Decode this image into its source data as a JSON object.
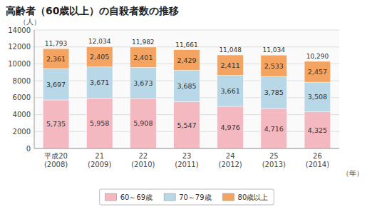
{
  "chart_data": {
    "type": "bar",
    "stacked": true,
    "title": "高齢者（60歳以上）の自殺者数の推移",
    "y_label": "（人）",
    "x_label": "（年）",
    "categories": [
      "平成20\n(2008)",
      "21\n(2009)",
      "22\n(2010)",
      "23\n(2011)",
      "24\n(2012)",
      "25\n(2013)",
      "26\n(2014)"
    ],
    "series": [
      {
        "name": "60～69歳",
        "color": "#f4b8c1",
        "values": [
          5735,
          5958,
          5908,
          5547,
          4976,
          4716,
          4325
        ],
        "value_labels": [
          "5,735",
          "5,958",
          "5,908",
          "5,547",
          "4,976",
          "4,716",
          "4,325"
        ]
      },
      {
        "name": "70～79歳",
        "color": "#b8d8e8",
        "values": [
          3697,
          3671,
          3673,
          3685,
          3661,
          3785,
          3508
        ],
        "value_labels": [
          "3,697",
          "3,671",
          "3,673",
          "3,685",
          "3,661",
          "3,785",
          "3,508"
        ]
      },
      {
        "name": "80歳以上",
        "color": "#f4a460",
        "values": [
          2361,
          2405,
          2401,
          2429,
          2411,
          2533,
          2457
        ],
        "value_labels": [
          "2,361",
          "2,405",
          "2,401",
          "2,429",
          "2,411",
          "2,533",
          "2,457"
        ]
      }
    ],
    "totals": [
      11793,
      12034,
      11982,
      11661,
      11048,
      11034,
      10290
    ],
    "total_labels": [
      "11,793",
      "12,034",
      "11,982",
      "11,661",
      "11,048",
      "11,034",
      "10,290"
    ],
    "ylim": [
      0,
      14000
    ],
    "yticks": [
      0,
      2000,
      4000,
      6000,
      8000,
      10000,
      12000,
      14000
    ],
    "grid": true,
    "data_labels": true,
    "legend": "bottom"
  }
}
